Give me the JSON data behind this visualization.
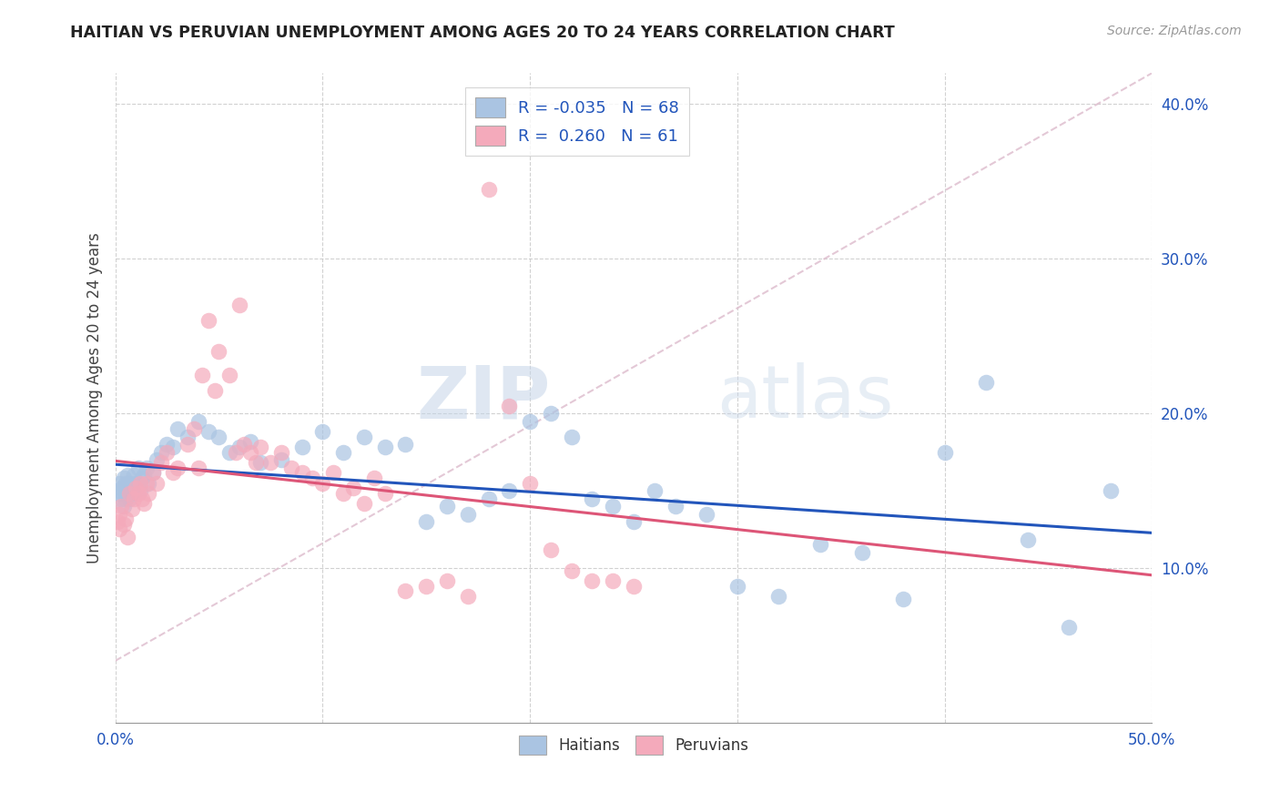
{
  "title": "HAITIAN VS PERUVIAN UNEMPLOYMENT AMONG AGES 20 TO 24 YEARS CORRELATION CHART",
  "source": "Source: ZipAtlas.com",
  "ylabel": "Unemployment Among Ages 20 to 24 years",
  "xlim": [
    0.0,
    0.5
  ],
  "ylim": [
    0.0,
    0.42
  ],
  "xtick_positions": [
    0.0,
    0.1,
    0.2,
    0.3,
    0.4,
    0.5
  ],
  "xticklabels_ends": [
    "0.0%",
    "50.0%"
  ],
  "yticks": [
    0.1,
    0.2,
    0.3,
    0.4
  ],
  "yticklabels": [
    "10.0%",
    "20.0%",
    "30.0%",
    "40.0%"
  ],
  "legend_R_haiti": "-0.035",
  "legend_N_haiti": "68",
  "legend_R_peru": "0.260",
  "legend_N_peru": "61",
  "haiti_color": "#aac4e2",
  "peru_color": "#f4aabb",
  "haiti_line_color": "#2255bb",
  "peru_line_color": "#dd5577",
  "watermark_zip": "ZIP",
  "watermark_atlas": "atlas",
  "haiti_x": [
    0.001,
    0.002,
    0.002,
    0.003,
    0.003,
    0.004,
    0.004,
    0.005,
    0.005,
    0.006,
    0.006,
    0.007,
    0.007,
    0.008,
    0.008,
    0.009,
    0.01,
    0.011,
    0.012,
    0.013,
    0.014,
    0.015,
    0.016,
    0.018,
    0.02,
    0.022,
    0.025,
    0.028,
    0.03,
    0.035,
    0.04,
    0.045,
    0.05,
    0.055,
    0.06,
    0.065,
    0.07,
    0.08,
    0.09,
    0.1,
    0.11,
    0.12,
    0.13,
    0.14,
    0.15,
    0.16,
    0.17,
    0.18,
    0.19,
    0.2,
    0.21,
    0.22,
    0.23,
    0.24,
    0.25,
    0.26,
    0.27,
    0.285,
    0.3,
    0.32,
    0.34,
    0.36,
    0.38,
    0.4,
    0.42,
    0.44,
    0.46,
    0.48
  ],
  "haiti_y": [
    0.15,
    0.148,
    0.155,
    0.145,
    0.152,
    0.14,
    0.158,
    0.145,
    0.155,
    0.148,
    0.16,
    0.145,
    0.155,
    0.148,
    0.152,
    0.16,
    0.155,
    0.165,
    0.15,
    0.158,
    0.16,
    0.165,
    0.155,
    0.162,
    0.17,
    0.175,
    0.18,
    0.178,
    0.19,
    0.185,
    0.195,
    0.188,
    0.185,
    0.175,
    0.178,
    0.182,
    0.168,
    0.17,
    0.178,
    0.188,
    0.175,
    0.185,
    0.178,
    0.18,
    0.13,
    0.14,
    0.135,
    0.145,
    0.15,
    0.195,
    0.2,
    0.185,
    0.145,
    0.14,
    0.13,
    0.15,
    0.14,
    0.135,
    0.088,
    0.082,
    0.115,
    0.11,
    0.08,
    0.175,
    0.22,
    0.118,
    0.062,
    0.15
  ],
  "peru_x": [
    0.001,
    0.002,
    0.002,
    0.003,
    0.004,
    0.005,
    0.006,
    0.007,
    0.008,
    0.009,
    0.01,
    0.011,
    0.012,
    0.013,
    0.014,
    0.015,
    0.016,
    0.018,
    0.02,
    0.022,
    0.025,
    0.028,
    0.03,
    0.035,
    0.038,
    0.04,
    0.042,
    0.045,
    0.048,
    0.05,
    0.055,
    0.058,
    0.06,
    0.062,
    0.065,
    0.068,
    0.07,
    0.075,
    0.08,
    0.085,
    0.09,
    0.095,
    0.1,
    0.105,
    0.11,
    0.115,
    0.12,
    0.125,
    0.13,
    0.14,
    0.15,
    0.16,
    0.17,
    0.18,
    0.19,
    0.2,
    0.21,
    0.22,
    0.23,
    0.24,
    0.25
  ],
  "peru_y": [
    0.13,
    0.125,
    0.135,
    0.14,
    0.128,
    0.132,
    0.12,
    0.148,
    0.138,
    0.145,
    0.152,
    0.148,
    0.155,
    0.145,
    0.142,
    0.155,
    0.148,
    0.162,
    0.155,
    0.168,
    0.175,
    0.162,
    0.165,
    0.18,
    0.19,
    0.165,
    0.225,
    0.26,
    0.215,
    0.24,
    0.225,
    0.175,
    0.27,
    0.18,
    0.175,
    0.168,
    0.178,
    0.168,
    0.175,
    0.165,
    0.162,
    0.158,
    0.155,
    0.162,
    0.148,
    0.152,
    0.142,
    0.158,
    0.148,
    0.085,
    0.088,
    0.092,
    0.082,
    0.345,
    0.205,
    0.155,
    0.112,
    0.098,
    0.092,
    0.092,
    0.088
  ],
  "dashed_line_x": [
    0.0,
    0.5
  ],
  "dashed_line_y": [
    0.04,
    0.42
  ]
}
